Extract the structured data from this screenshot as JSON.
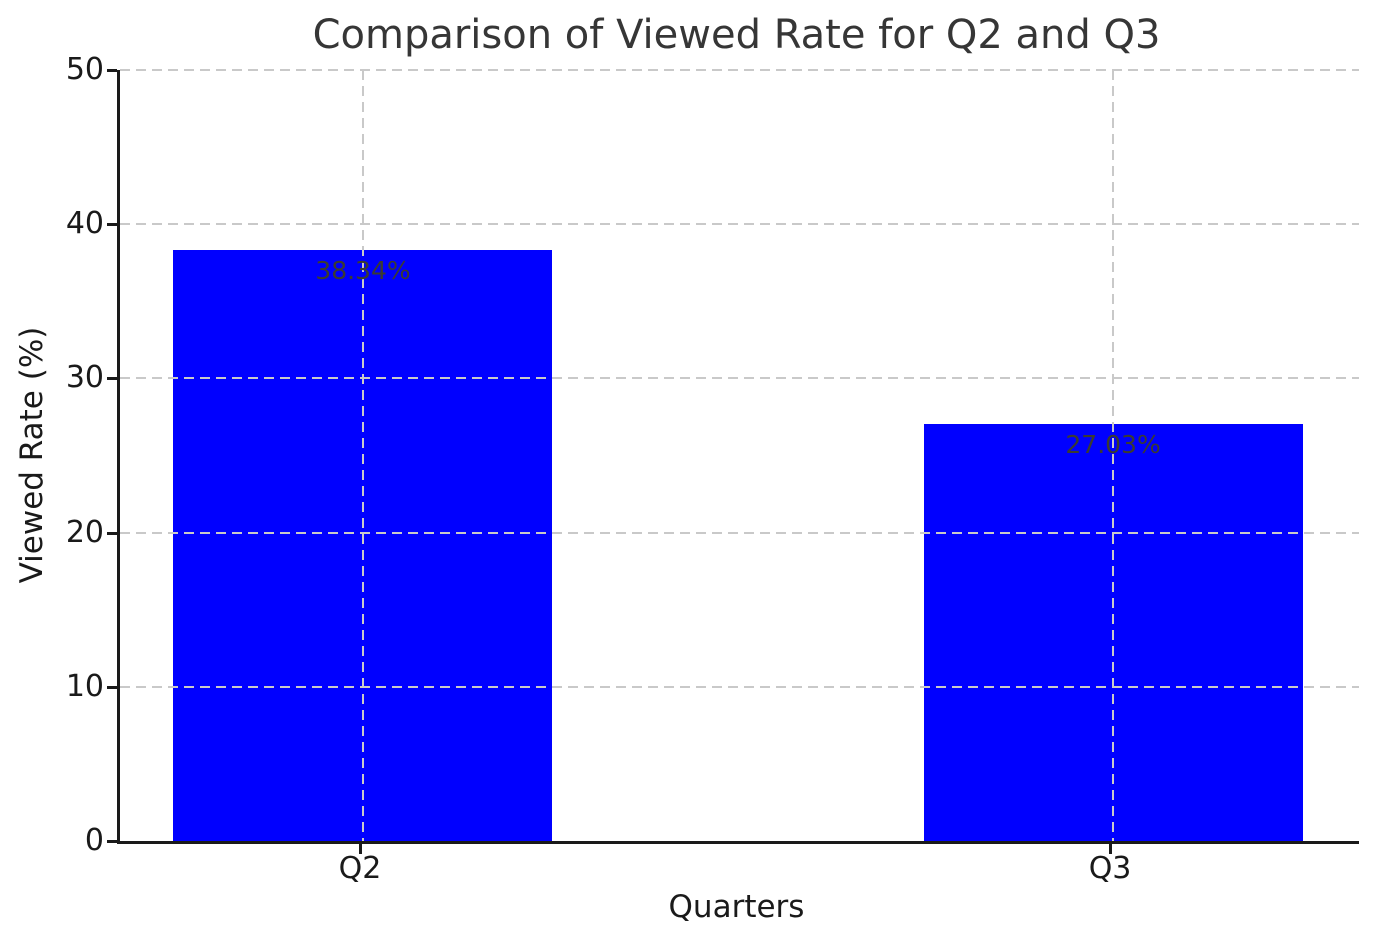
{
  "chart_data": {
    "type": "bar",
    "title": "Comparison of Viewed Rate for Q2 and Q3",
    "categories": [
      "Q2",
      "Q3"
    ],
    "values": [
      38.34,
      27.03
    ],
    "bar_labels": [
      "38.34%",
      "27.03%"
    ],
    "xlabel": "Quarters",
    "ylabel": "Viewed Rate (%)",
    "ylim": [
      0,
      50
    ],
    "yticks": [
      0,
      10,
      20,
      30,
      40,
      50
    ],
    "grid": "dashed gridlines on both axes, drawn above bars",
    "legend": "none",
    "colors": {
      "bar": "#0000ff",
      "bar_value_label": "#3b3b31",
      "gridline": "#c9c9c9",
      "axis": "#1a1a1a",
      "title": "#363636",
      "background": "#ffffff"
    },
    "layout_hints": {
      "bar_centers_frac": [
        0.1961,
        0.8015
      ],
      "bar_width_frac": 0.3059
    }
  }
}
